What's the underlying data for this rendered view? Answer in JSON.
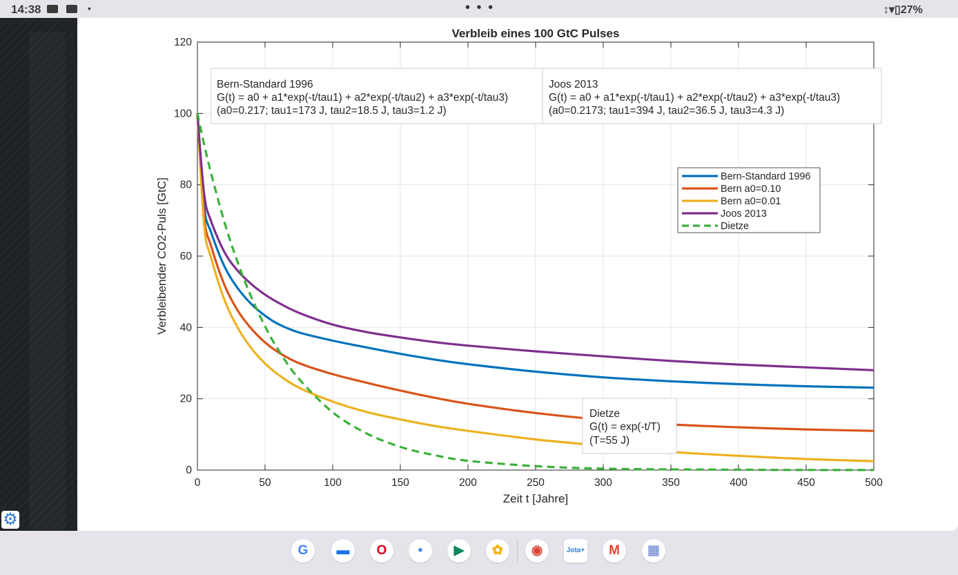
{
  "status_bar": {
    "time": "14:38",
    "dot": "•",
    "menu": "• • •",
    "battery": "27%",
    "icons": [
      "youtube-icon",
      "youtube-icon",
      "vibrate-icon",
      "wifi-icon",
      "battery-icon"
    ]
  },
  "colors": {
    "bern_standard": "#0072bd",
    "bern_010": "#d95319",
    "bern_001": "#edb120",
    "joos": "#7e2f8e",
    "dietze": "#3ab03a"
  },
  "dock": {
    "apps": [
      {
        "icon": "google-icon",
        "glyph": "G",
        "color": "#4285f4"
      },
      {
        "icon": "messages-icon",
        "glyph": "▬",
        "color": "#1a73e8"
      },
      {
        "icon": "opera-icon",
        "glyph": "O",
        "color": "#e0001b"
      },
      {
        "icon": "assistant-icon",
        "glyph": "•",
        "color": "#4285f4"
      },
      {
        "icon": "play-store-icon",
        "glyph": "▶",
        "color": "#01875f"
      },
      {
        "icon": "photos-icon",
        "glyph": "✿",
        "color": "#f4b400"
      },
      {
        "icon": "chrome-icon",
        "glyph": "◉",
        "color": "#db4437"
      },
      {
        "icon": "jota-icon",
        "glyph": "Jota+",
        "color": "#2b7cd3"
      },
      {
        "icon": "gmail-icon",
        "glyph": "M",
        "color": "#ea4335"
      },
      {
        "icon": "app-drawer-icon",
        "glyph": "▦",
        "color": "#8aa0d8"
      }
    ]
  },
  "chart_data": {
    "type": "line",
    "title": "Verbleib eines 100 GtC Pulses",
    "xlabel": "Zeit t [Jahre]",
    "ylabel": "Verbleibender CO2-Puls [GtC]",
    "xlim": [
      0,
      500
    ],
    "ylim": [
      0,
      120
    ],
    "xticks": [
      0,
      50,
      100,
      150,
      200,
      250,
      300,
      350,
      400,
      450,
      500
    ],
    "yticks": [
      0,
      20,
      40,
      60,
      80,
      100,
      120
    ],
    "grid": true,
    "legend_position": "upper-right",
    "x": [
      0,
      5,
      10,
      20,
      30,
      40,
      50,
      60,
      75,
      100,
      125,
      150,
      175,
      200,
      250,
      300,
      350,
      400,
      450,
      500
    ],
    "series": [
      {
        "name": "Bern-Standard 1996",
        "style": "solid",
        "values": [
          100,
          73.9,
          66.8,
          57.1,
          50.9,
          46.5,
          43.3,
          40.9,
          38.6,
          36.3,
          34.4,
          32.6,
          31.0,
          29.7,
          27.6,
          26.0,
          24.9,
          24.1,
          23.5,
          23.1
        ]
      },
      {
        "name": "Bern a0=0.10",
        "style": "solid",
        "values": [
          100,
          71.0,
          63.0,
          51.9,
          44.6,
          39.6,
          35.8,
          33.0,
          30.0,
          26.9,
          24.5,
          22.3,
          20.3,
          18.6,
          16.0,
          14.1,
          12.8,
          12.0,
          11.4,
          11.0
        ]
      },
      {
        "name": "Bern a0=0.01",
        "style": "solid",
        "values": [
          100,
          68.6,
          59.7,
          47.7,
          39.8,
          34.1,
          29.9,
          26.7,
          23.1,
          19.2,
          16.3,
          14.2,
          12.4,
          11.0,
          8.6,
          6.8,
          5.1,
          4.0,
          3.1,
          2.5
        ]
      },
      {
        "name": "Joos 2013",
        "style": "solid",
        "values": [
          100,
          77.4,
          69.9,
          61.1,
          55.8,
          52.1,
          49.2,
          46.9,
          44.1,
          40.8,
          38.7,
          37.2,
          35.9,
          34.9,
          33.3,
          31.9,
          30.6,
          29.6,
          28.8,
          28.0
        ]
      },
      {
        "name": "Dietze",
        "style": "dashed",
        "values": [
          100,
          91.3,
          83.4,
          69.5,
          58.0,
          48.4,
          40.3,
          33.6,
          25.6,
          16.2,
          10.3,
          6.5,
          4.2,
          2.6,
          1.1,
          0.4,
          0.2,
          0.1,
          0.03,
          0.01
        ]
      }
    ],
    "annotations": {
      "bern": {
        "lines": [
          "Bern-Standard 1996",
          "G(t) = a0 + a1*exp(-t/tau1) + a2*exp(-t/tau2) + a3*exp(-t/tau3)",
          "(a0=0.217; tau1=173 J, tau2=18.5 J, tau3=1.2 J)"
        ]
      },
      "joos": {
        "lines": [
          "Joos 2013",
          "G(t) = a0 + a1*exp(-t/tau1) + a2*exp(-t/tau2) + a3*exp(-t/tau3)",
          "(a0=0.2173; tau1=394 J, tau2=36.5 J, tau3=4.3 J)"
        ]
      },
      "dietze": {
        "lines": [
          "Dietze",
          "G(t) = exp(-t/T)",
          "(T=55 J)"
        ]
      }
    }
  }
}
